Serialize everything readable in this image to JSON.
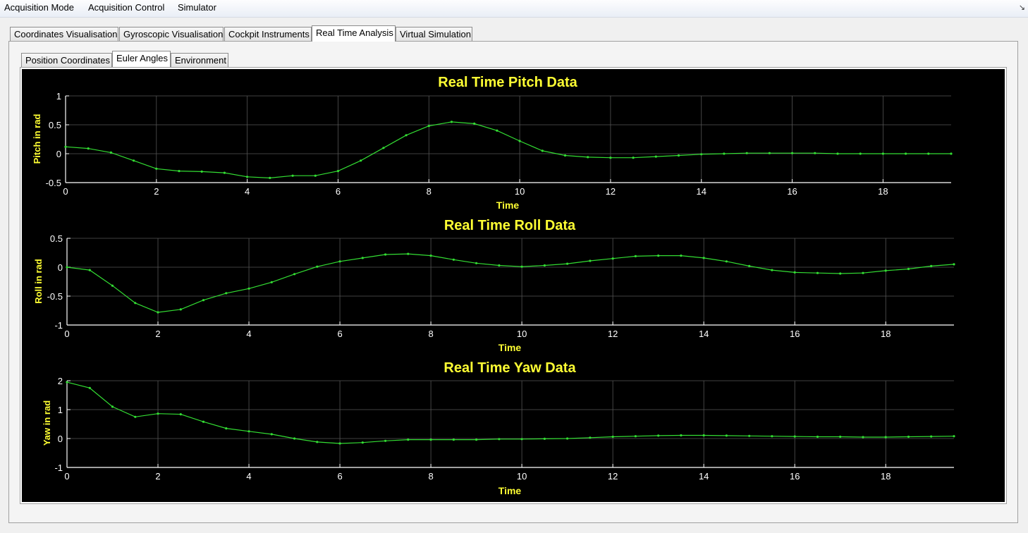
{
  "menu": [
    "Acquisition Mode",
    "Acquisition Control",
    "Simulator"
  ],
  "menu_corner_icon": "restore-arrow-icon",
  "main_tabs": [
    "Coordinates Visualisation",
    "Gyroscopic Visualisation",
    "Cockpit Instruments",
    "Real Time Analysis",
    "Virtual Simulation"
  ],
  "main_active_tab": "Real Time Analysis",
  "sub_tabs": [
    "Position Coordinates",
    "Euler Angles",
    "Environment"
  ],
  "sub_active_tab": "Euler Angles",
  "colors": {
    "background": "#000000",
    "line": "#33dd33",
    "title": "#ffff33",
    "grid": "#555555",
    "axis": "#ffffff"
  },
  "chart_data": [
    {
      "type": "line",
      "title": "Real Time Pitch Data",
      "xlabel": "Time",
      "ylabel": "Pitch in rad",
      "xlim": [
        0,
        19.5
      ],
      "ylim": [
        -0.5,
        1
      ],
      "xticks": [
        0,
        2,
        4,
        6,
        8,
        10,
        12,
        14,
        16,
        18
      ],
      "yticks": [
        -0.5,
        0,
        0.5,
        1
      ],
      "ytick_labels": [
        "-0.5",
        "0",
        "0.5",
        "1"
      ],
      "series": [
        {
          "name": "pitch",
          "x": [
            0,
            0.5,
            1,
            1.5,
            2,
            2.5,
            3,
            3.5,
            4,
            4.5,
            5,
            5.5,
            6,
            6.5,
            7,
            7.5,
            8,
            8.5,
            9,
            9.5,
            10,
            10.5,
            11,
            11.5,
            12,
            12.5,
            13,
            13.5,
            14,
            14.5,
            15,
            15.5,
            16,
            16.5,
            17,
            17.5,
            18,
            18.5,
            19,
            19.5
          ],
          "values": [
            0.12,
            0.09,
            0.02,
            -0.12,
            -0.26,
            -0.3,
            -0.31,
            -0.33,
            -0.4,
            -0.42,
            -0.38,
            -0.38,
            -0.3,
            -0.12,
            0.1,
            0.32,
            0.48,
            0.55,
            0.52,
            0.4,
            0.22,
            0.05,
            -0.03,
            -0.06,
            -0.07,
            -0.07,
            -0.05,
            -0.03,
            -0.01,
            0,
            0.01,
            0.01,
            0.01,
            0.01,
            0,
            0,
            0,
            0,
            0,
            0
          ]
        }
      ]
    },
    {
      "type": "line",
      "title": "Real Time Roll Data",
      "xlabel": "Time",
      "ylabel": "Roll in rad",
      "xlim": [
        0,
        19.5
      ],
      "ylim": [
        -1,
        0.5
      ],
      "xticks": [
        0,
        2,
        4,
        6,
        8,
        10,
        12,
        14,
        16,
        18
      ],
      "yticks": [
        -1,
        -0.5,
        0,
        0.5
      ],
      "ytick_labels": [
        "-1",
        "-0.5",
        "0",
        "0.5"
      ],
      "series": [
        {
          "name": "roll",
          "x": [
            0,
            0.5,
            1,
            1.5,
            2,
            2.5,
            3,
            3.5,
            4,
            4.5,
            5,
            5.5,
            6,
            6.5,
            7,
            7.5,
            8,
            8.5,
            9,
            9.5,
            10,
            10.5,
            11,
            11.5,
            12,
            12.5,
            13,
            13.5,
            14,
            14.5,
            15,
            15.5,
            16,
            16.5,
            17,
            17.5,
            18,
            18.5,
            19,
            19.5
          ],
          "values": [
            0,
            -0.05,
            -0.32,
            -0.62,
            -0.78,
            -0.73,
            -0.57,
            -0.45,
            -0.37,
            -0.26,
            -0.12,
            0.01,
            0.1,
            0.16,
            0.22,
            0.23,
            0.2,
            0.13,
            0.07,
            0.03,
            0.01,
            0.03,
            0.06,
            0.11,
            0.15,
            0.19,
            0.2,
            0.2,
            0.16,
            0.1,
            0.02,
            -0.05,
            -0.09,
            -0.1,
            -0.11,
            -0.1,
            -0.06,
            -0.03,
            0.02,
            0.05
          ]
        }
      ]
    },
    {
      "type": "line",
      "title": "Real Time Yaw Data",
      "xlabel": "Time",
      "ylabel": "Yaw in rad",
      "xlim": [
        0,
        19.5
      ],
      "ylim": [
        -1,
        2
      ],
      "xticks": [
        0,
        2,
        4,
        6,
        8,
        10,
        12,
        14,
        16,
        18
      ],
      "yticks": [
        -1,
        0,
        1,
        2
      ],
      "ytick_labels": [
        "-1",
        "0",
        "1",
        "2"
      ],
      "series": [
        {
          "name": "yaw",
          "x": [
            0,
            0.5,
            1,
            1.5,
            2,
            2.5,
            3,
            3.5,
            4,
            4.5,
            5,
            5.5,
            6,
            6.5,
            7,
            7.5,
            8,
            8.5,
            9,
            9.5,
            10,
            10.5,
            11,
            11.5,
            12,
            12.5,
            13,
            13.5,
            14,
            14.5,
            15,
            15.5,
            16,
            16.5,
            17,
            17.5,
            18,
            18.5,
            19,
            19.5
          ],
          "values": [
            1.95,
            1.75,
            1.1,
            0.75,
            0.86,
            0.84,
            0.58,
            0.35,
            0.25,
            0.15,
            0,
            -0.12,
            -0.17,
            -0.14,
            -0.08,
            -0.04,
            -0.04,
            -0.04,
            -0.04,
            -0.02,
            -0.02,
            -0.01,
            0,
            0.03,
            0.06,
            0.08,
            0.1,
            0.11,
            0.11,
            0.1,
            0.09,
            0.08,
            0.07,
            0.06,
            0.06,
            0.05,
            0.05,
            0.06,
            0.07,
            0.08
          ]
        }
      ]
    }
  ]
}
